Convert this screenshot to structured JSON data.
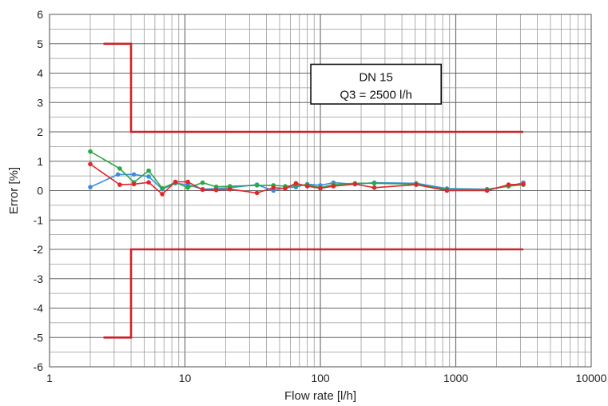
{
  "chart_data": {
    "type": "line",
    "xlabel": "Flow rate [l/h]",
    "ylabel": "Error [%]",
    "xscale": "log",
    "xlim": [
      1,
      10000
    ],
    "ylim": [
      -6,
      6
    ],
    "x_ticks": [
      "1",
      "10",
      "100",
      "1000",
      "10000"
    ],
    "y_ticks": [
      "-6",
      "-5",
      "-4",
      "-3",
      "-2",
      "-1",
      "0",
      "1",
      "2",
      "3",
      "4",
      "5",
      "6"
    ],
    "grid": true,
    "annotation": {
      "line1": "DN 15",
      "line2": "Q3 = 2500 l/h"
    },
    "limits": {
      "color": "#cc2229",
      "upper": [
        [
          2.5,
          5
        ],
        [
          4,
          5
        ],
        [
          4,
          2
        ],
        [
          3150,
          2
        ]
      ],
      "lower": [
        [
          2.5,
          -5
        ],
        [
          4,
          -5
        ],
        [
          4,
          -2
        ],
        [
          3150,
          -2
        ]
      ]
    },
    "series": [
      {
        "color": "#3a8dde",
        "points": [
          [
            2,
            0.12
          ],
          [
            3.2,
            0.55
          ],
          [
            4.2,
            0.55
          ],
          [
            5.4,
            0.48
          ],
          [
            6.8,
            0.05
          ],
          [
            8.5,
            0.25
          ],
          [
            10.5,
            0.2
          ],
          [
            13.5,
            0.05
          ],
          [
            17,
            0.07
          ],
          [
            21.5,
            0.1
          ],
          [
            34,
            0.2
          ],
          [
            45,
            0.0
          ],
          [
            55,
            0.1
          ],
          [
            66,
            0.12
          ],
          [
            80,
            0.22
          ],
          [
            100,
            0.18
          ],
          [
            125,
            0.27
          ],
          [
            180,
            0.22
          ],
          [
            250,
            0.27
          ],
          [
            510,
            0.25
          ],
          [
            860,
            0.07
          ],
          [
            1700,
            0.05
          ],
          [
            2450,
            0.15
          ],
          [
            3150,
            0.27
          ]
        ]
      },
      {
        "color": "#2ba845",
        "points": [
          [
            2,
            1.33
          ],
          [
            3.3,
            0.75
          ],
          [
            4.2,
            0.28
          ],
          [
            5.4,
            0.68
          ],
          [
            6.8,
            0.08
          ],
          [
            8.5,
            0.28
          ],
          [
            10.5,
            0.1
          ],
          [
            13.5,
            0.27
          ],
          [
            17,
            0.13
          ],
          [
            21.5,
            0.15
          ],
          [
            34,
            0.18
          ],
          [
            45,
            0.18
          ],
          [
            55,
            0.15
          ],
          [
            66,
            0.17
          ],
          [
            80,
            0.2
          ],
          [
            100,
            0.1
          ],
          [
            125,
            0.2
          ],
          [
            180,
            0.25
          ],
          [
            250,
            0.25
          ],
          [
            510,
            0.22
          ],
          [
            860,
            0.03
          ],
          [
            1700,
            0.03
          ],
          [
            2450,
            0.15
          ],
          [
            3150,
            0.2
          ]
        ]
      },
      {
        "color": "#e0262b",
        "points": [
          [
            2,
            0.9
          ],
          [
            3.3,
            0.2
          ],
          [
            4.2,
            0.22
          ],
          [
            5.4,
            0.28
          ],
          [
            6.8,
            -0.12
          ],
          [
            8.5,
            0.3
          ],
          [
            10.5,
            0.3
          ],
          [
            13.5,
            0.03
          ],
          [
            17,
            0.02
          ],
          [
            21.5,
            0.05
          ],
          [
            34,
            -0.08
          ],
          [
            45,
            0.1
          ],
          [
            55,
            0.07
          ],
          [
            66,
            0.25
          ],
          [
            80,
            0.15
          ],
          [
            100,
            0.08
          ],
          [
            125,
            0.15
          ],
          [
            180,
            0.22
          ],
          [
            250,
            0.1
          ],
          [
            510,
            0.2
          ],
          [
            860,
            0.0
          ],
          [
            1700,
            0.0
          ],
          [
            2450,
            0.2
          ],
          [
            3150,
            0.22
          ]
        ]
      }
    ]
  }
}
